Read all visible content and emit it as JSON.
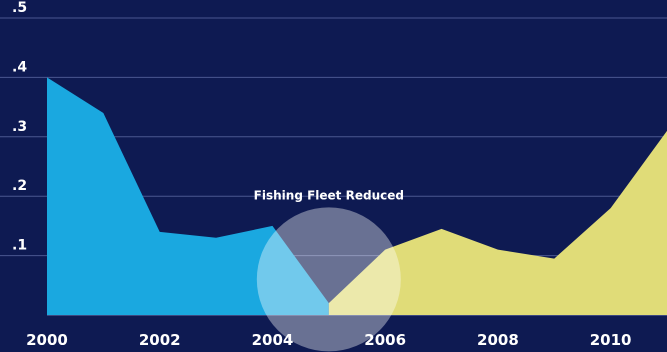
{
  "chart_data": {
    "type": "area",
    "x": [
      2000,
      2001,
      2002,
      2003,
      2004,
      2005,
      2006,
      2007,
      2008,
      2009,
      2010,
      2011
    ],
    "series": [
      {
        "values": [
          0.4,
          0.34,
          0.14,
          0.13,
          0.15,
          0.02,
          null,
          null,
          null,
          null,
          null,
          null
        ],
        "color": "#1aa8e0"
      },
      {
        "values": [
          null,
          null,
          null,
          null,
          null,
          0.02,
          0.11,
          0.145,
          0.11,
          0.095,
          0.18,
          0.31
        ],
        "color": "#e0dc78"
      }
    ],
    "ylim": [
      0,
      0.5
    ],
    "xlim": [
      2000,
      2011
    ],
    "y_ticks": [
      0.1,
      0.2,
      0.3,
      0.4,
      0.5
    ],
    "y_tick_labels": [
      ".1",
      ".2",
      ".3",
      ".4",
      ".5"
    ],
    "x_ticks": [
      2000,
      2002,
      2004,
      2006,
      2008,
      2010
    ],
    "x_tick_labels": [
      "2000",
      "2002",
      "2004",
      "2006",
      "2008",
      "2010"
    ],
    "grid": true,
    "background": "#0e1a52",
    "grid_color": "#5a66a0",
    "annotation": {
      "text": "Fishing Fleet Reduced",
      "x": 2005,
      "y": 0.06,
      "color": "#ffffff"
    }
  }
}
